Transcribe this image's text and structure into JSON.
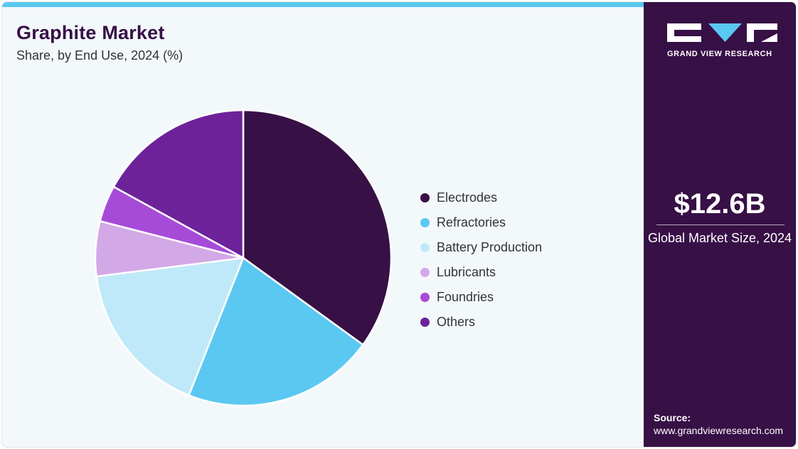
{
  "header": {
    "title": "Graphite Market",
    "subtitle": "Share, by End Use, 2024 (%)"
  },
  "brand": {
    "name": "GRAND VIEW RESEARCH",
    "logo_icon": "gvr-logo-icon",
    "accent": "#5bc8f2",
    "panel_bg": "#371046"
  },
  "kpi": {
    "value": "$12.6B",
    "label": "Global Market Size, 2024"
  },
  "source": {
    "label": "Source:",
    "url": "www.grandviewresearch.com"
  },
  "chart_data": {
    "type": "pie",
    "title": "Graphite Market",
    "subtitle": "Share, by End Use, 2024 (%)",
    "legend_position": "right",
    "categories": [
      "Electrodes",
      "Refractories",
      "Battery Production",
      "Lubricants",
      "Foundries",
      "Others"
    ],
    "values": [
      35,
      21,
      17,
      6,
      4,
      17
    ],
    "colors": [
      "#371046",
      "#5bc8f2",
      "#bfe9f8",
      "#d3a8e6",
      "#a64bd8",
      "#6d2299"
    ]
  }
}
